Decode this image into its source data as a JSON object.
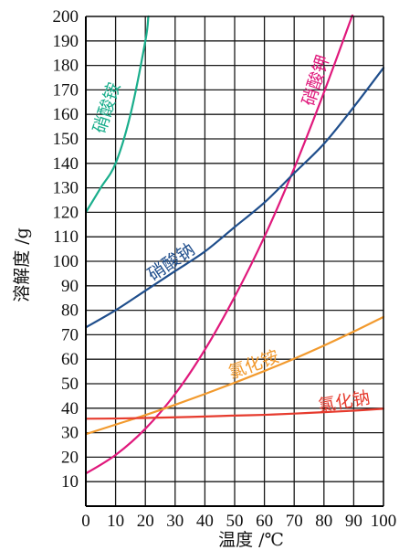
{
  "chart_data": {
    "type": "line",
    "xlabel": "温度 /℃",
    "ylabel": "溶解度 /g",
    "xlim": [
      0,
      100
    ],
    "ylim": [
      0,
      200
    ],
    "x_ticks": [
      0,
      10,
      20,
      30,
      40,
      50,
      60,
      70,
      80,
      90,
      100
    ],
    "y_ticks": [
      10,
      20,
      30,
      40,
      50,
      60,
      70,
      80,
      90,
      100,
      110,
      120,
      130,
      140,
      150,
      160,
      170,
      180,
      190,
      200
    ],
    "grid": true,
    "series": [
      {
        "name": "硝酸铵",
        "color": "#1aae8c",
        "x": [
          0,
          5,
          10,
          15,
          20,
          21
        ],
        "y": [
          120,
          130,
          140,
          160,
          190,
          200
        ]
      },
      {
        "name": "硝酸钾",
        "color": "#e0197c",
        "x": [
          0,
          10,
          20,
          30,
          40,
          50,
          60,
          70,
          80,
          90
        ],
        "y": [
          13.3,
          20.9,
          31.6,
          45.8,
          63.9,
          85.5,
          110,
          138,
          169,
          202
        ]
      },
      {
        "name": "硝酸钠",
        "color": "#1f4e8c",
        "x": [
          0,
          10,
          20,
          30,
          40,
          50,
          60,
          70,
          80,
          90,
          100
        ],
        "y": [
          73,
          80,
          88,
          96,
          104,
          114,
          124,
          136,
          148,
          163,
          179
        ]
      },
      {
        "name": "氯化铵",
        "color": "#f29a2e",
        "x": [
          0,
          10,
          20,
          30,
          40,
          50,
          60,
          70,
          80,
          90,
          100
        ],
        "y": [
          29.4,
          33.3,
          37.2,
          41.4,
          45.8,
          50.4,
          55.2,
          60.2,
          65.6,
          71.3,
          77.3
        ]
      },
      {
        "name": "氯化钠",
        "color": "#e63b2e",
        "x": [
          0,
          10,
          20,
          30,
          40,
          50,
          60,
          70,
          80,
          90,
          100
        ],
        "y": [
          35.7,
          35.8,
          36.0,
          36.3,
          36.6,
          37.0,
          37.3,
          37.8,
          38.4,
          39.0,
          39.8
        ]
      }
    ]
  }
}
